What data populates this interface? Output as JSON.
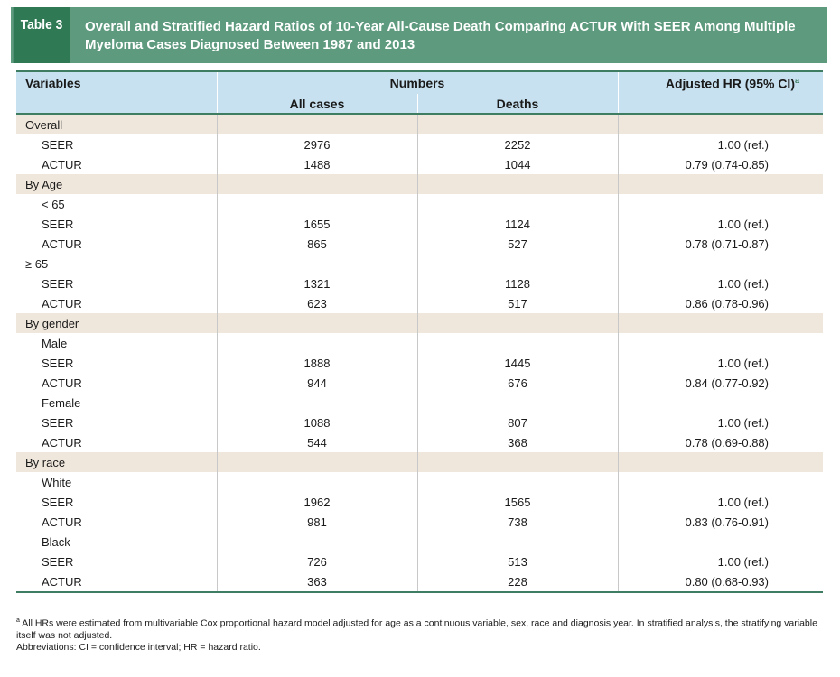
{
  "title": {
    "tag": "Table 3",
    "text": "Overall and Stratified Hazard Ratios of 10-Year All-Cause Death Comparing ACTUR With SEER Among Multiple Myeloma Cases Diagnosed Between 1987 and 2013"
  },
  "headers": {
    "variables": "Variables",
    "numbers": "Numbers",
    "adjusted_hr": "Adjusted HR (95% CI)",
    "adjusted_hr_sup": "a",
    "all_cases": "All cases",
    "deaths": "Deaths"
  },
  "rows": [
    {
      "label": "Overall",
      "all": "",
      "deaths": "",
      "hr": "",
      "band": true,
      "indent": 0
    },
    {
      "label": "SEER",
      "all": "2976",
      "deaths": "2252",
      "hr": "1.00 (ref.)",
      "band": false,
      "indent": 1
    },
    {
      "label": "ACTUR",
      "all": "1488",
      "deaths": "1044",
      "hr": "0.79 (0.74-0.85)",
      "band": false,
      "indent": 1
    },
    {
      "label": "By Age",
      "all": "",
      "deaths": "",
      "hr": "",
      "band": true,
      "indent": 0
    },
    {
      "label": "< 65",
      "all": "",
      "deaths": "",
      "hr": "",
      "band": false,
      "indent": 1
    },
    {
      "label": "SEER",
      "all": "1655",
      "deaths": "1124",
      "hr": "1.00 (ref.)",
      "band": false,
      "indent": 1
    },
    {
      "label": "ACTUR",
      "all": "865",
      "deaths": "527",
      "hr": "0.78 (0.71-0.87)",
      "band": false,
      "indent": 1
    },
    {
      "label": "≥ 65",
      "all": "",
      "deaths": "",
      "hr": "",
      "band": false,
      "indent": 0
    },
    {
      "label": "SEER",
      "all": "1321",
      "deaths": "1128",
      "hr": "1.00 (ref.)",
      "band": false,
      "indent": 1
    },
    {
      "label": "ACTUR",
      "all": "623",
      "deaths": "517",
      "hr": "0.86 (0.78-0.96)",
      "band": false,
      "indent": 1
    },
    {
      "label": "By gender",
      "all": "",
      "deaths": "",
      "hr": "",
      "band": true,
      "indent": 0
    },
    {
      "label": "Male",
      "all": "",
      "deaths": "",
      "hr": "",
      "band": false,
      "indent": 1
    },
    {
      "label": "SEER",
      "all": "1888",
      "deaths": "1445",
      "hr": "1.00 (ref.)",
      "band": false,
      "indent": 1
    },
    {
      "label": "ACTUR",
      "all": "944",
      "deaths": "676",
      "hr": "0.84 (0.77-0.92)",
      "band": false,
      "indent": 1
    },
    {
      "label": "Female",
      "all": "",
      "deaths": "",
      "hr": "",
      "band": false,
      "indent": 1
    },
    {
      "label": "SEER",
      "all": "1088",
      "deaths": "807",
      "hr": "1.00 (ref.)",
      "band": false,
      "indent": 1
    },
    {
      "label": "ACTUR",
      "all": "544",
      "deaths": "368",
      "hr": "0.78 (0.69-0.88)",
      "band": false,
      "indent": 1
    },
    {
      "label": "By race",
      "all": "",
      "deaths": "",
      "hr": "",
      "band": true,
      "indent": 0
    },
    {
      "label": "White",
      "all": "",
      "deaths": "",
      "hr": "",
      "band": false,
      "indent": 1
    },
    {
      "label": "SEER",
      "all": "1962",
      "deaths": "1565",
      "hr": "1.00 (ref.)",
      "band": false,
      "indent": 1
    },
    {
      "label": "ACTUR",
      "all": "981",
      "deaths": "738",
      "hr": "0.83 (0.76-0.91)",
      "band": false,
      "indent": 1
    },
    {
      "label": "Black",
      "all": "",
      "deaths": "",
      "hr": "",
      "band": false,
      "indent": 1
    },
    {
      "label": "SEER",
      "all": "726",
      "deaths": "513",
      "hr": "1.00 (ref.)",
      "band": false,
      "indent": 1
    },
    {
      "label": "ACTUR",
      "all": "363",
      "deaths": "228",
      "hr": "0.80 (0.68-0.93)",
      "band": false,
      "indent": 1
    }
  ],
  "footnotes": {
    "note_sup": "a",
    "note_text": "All HRs were estimated from multivariable Cox proportional hazard model adjusted for age as a continuous variable, sex, race and diagnosis year. In stratified analysis, the stratifying variable itself was not adjusted.",
    "abbreviations": "Abbreviations: CI = confidence interval; HR = hazard ratio."
  },
  "colors": {
    "title_bg": "#5e9a7e",
    "tag_bg": "#2f7a55",
    "header_bg": "#c7e1f0",
    "band_bg": "#f0e7dc",
    "rule": "#3f7d63"
  }
}
